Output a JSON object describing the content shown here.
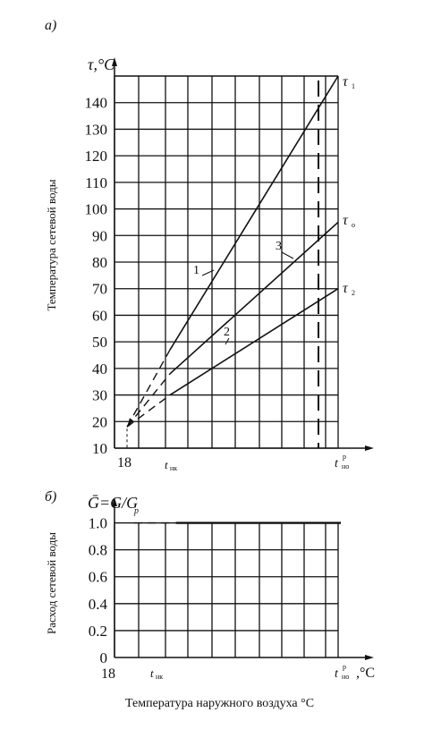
{
  "chart_data": [
    {
      "type": "line",
      "panel_label": "а)",
      "ylabel": "Температура сетевой воды",
      "y_axis_title": "τ,°C",
      "yticks": [
        10,
        20,
        30,
        40,
        50,
        60,
        70,
        80,
        90,
        100,
        110,
        120,
        130,
        140
      ],
      "ylim": [
        10,
        150
      ],
      "grid": true,
      "x_tick_labels": {
        "start": "18",
        "tnk": "t_нк",
        "tno": "t_но^р"
      },
      "series": [
        {
          "name": "τ₁",
          "curve_number": "1",
          "points": [
            [
              "start",
              18
            ],
            [
              "tnk",
              47
            ],
            [
              "tno",
              150
            ]
          ]
        },
        {
          "name": "τ₀",
          "curve_number": "3",
          "points": [
            [
              "start",
              18
            ],
            [
              "tnk",
              38
            ],
            [
              "tno",
              95
            ]
          ]
        },
        {
          "name": "τ₂",
          "curve_number": "2",
          "points": [
            [
              "start",
              18
            ],
            [
              "tnk",
              30
            ],
            [
              "tno",
              70
            ]
          ]
        }
      ]
    },
    {
      "type": "line",
      "panel_label": "б)",
      "ylabel": "Расход сетевой воды",
      "y_axis_title": "Ḡ=G/Gр",
      "yticks": [
        "0",
        "0.2",
        "0.4",
        "0.6",
        "0.8",
        "1.0"
      ],
      "ylim": [
        0,
        1.15
      ],
      "grid": true,
      "x_tick_labels": {
        "start": "18",
        "tnk": "t_нк",
        "tno": "t_но^р, °C"
      },
      "series": [
        {
          "name": "G",
          "points": [
            [
              "start",
              1.0
            ],
            [
              "tno",
              1.0
            ]
          ]
        }
      ],
      "xlabel": "Температура наружного воздуха °C"
    }
  ]
}
